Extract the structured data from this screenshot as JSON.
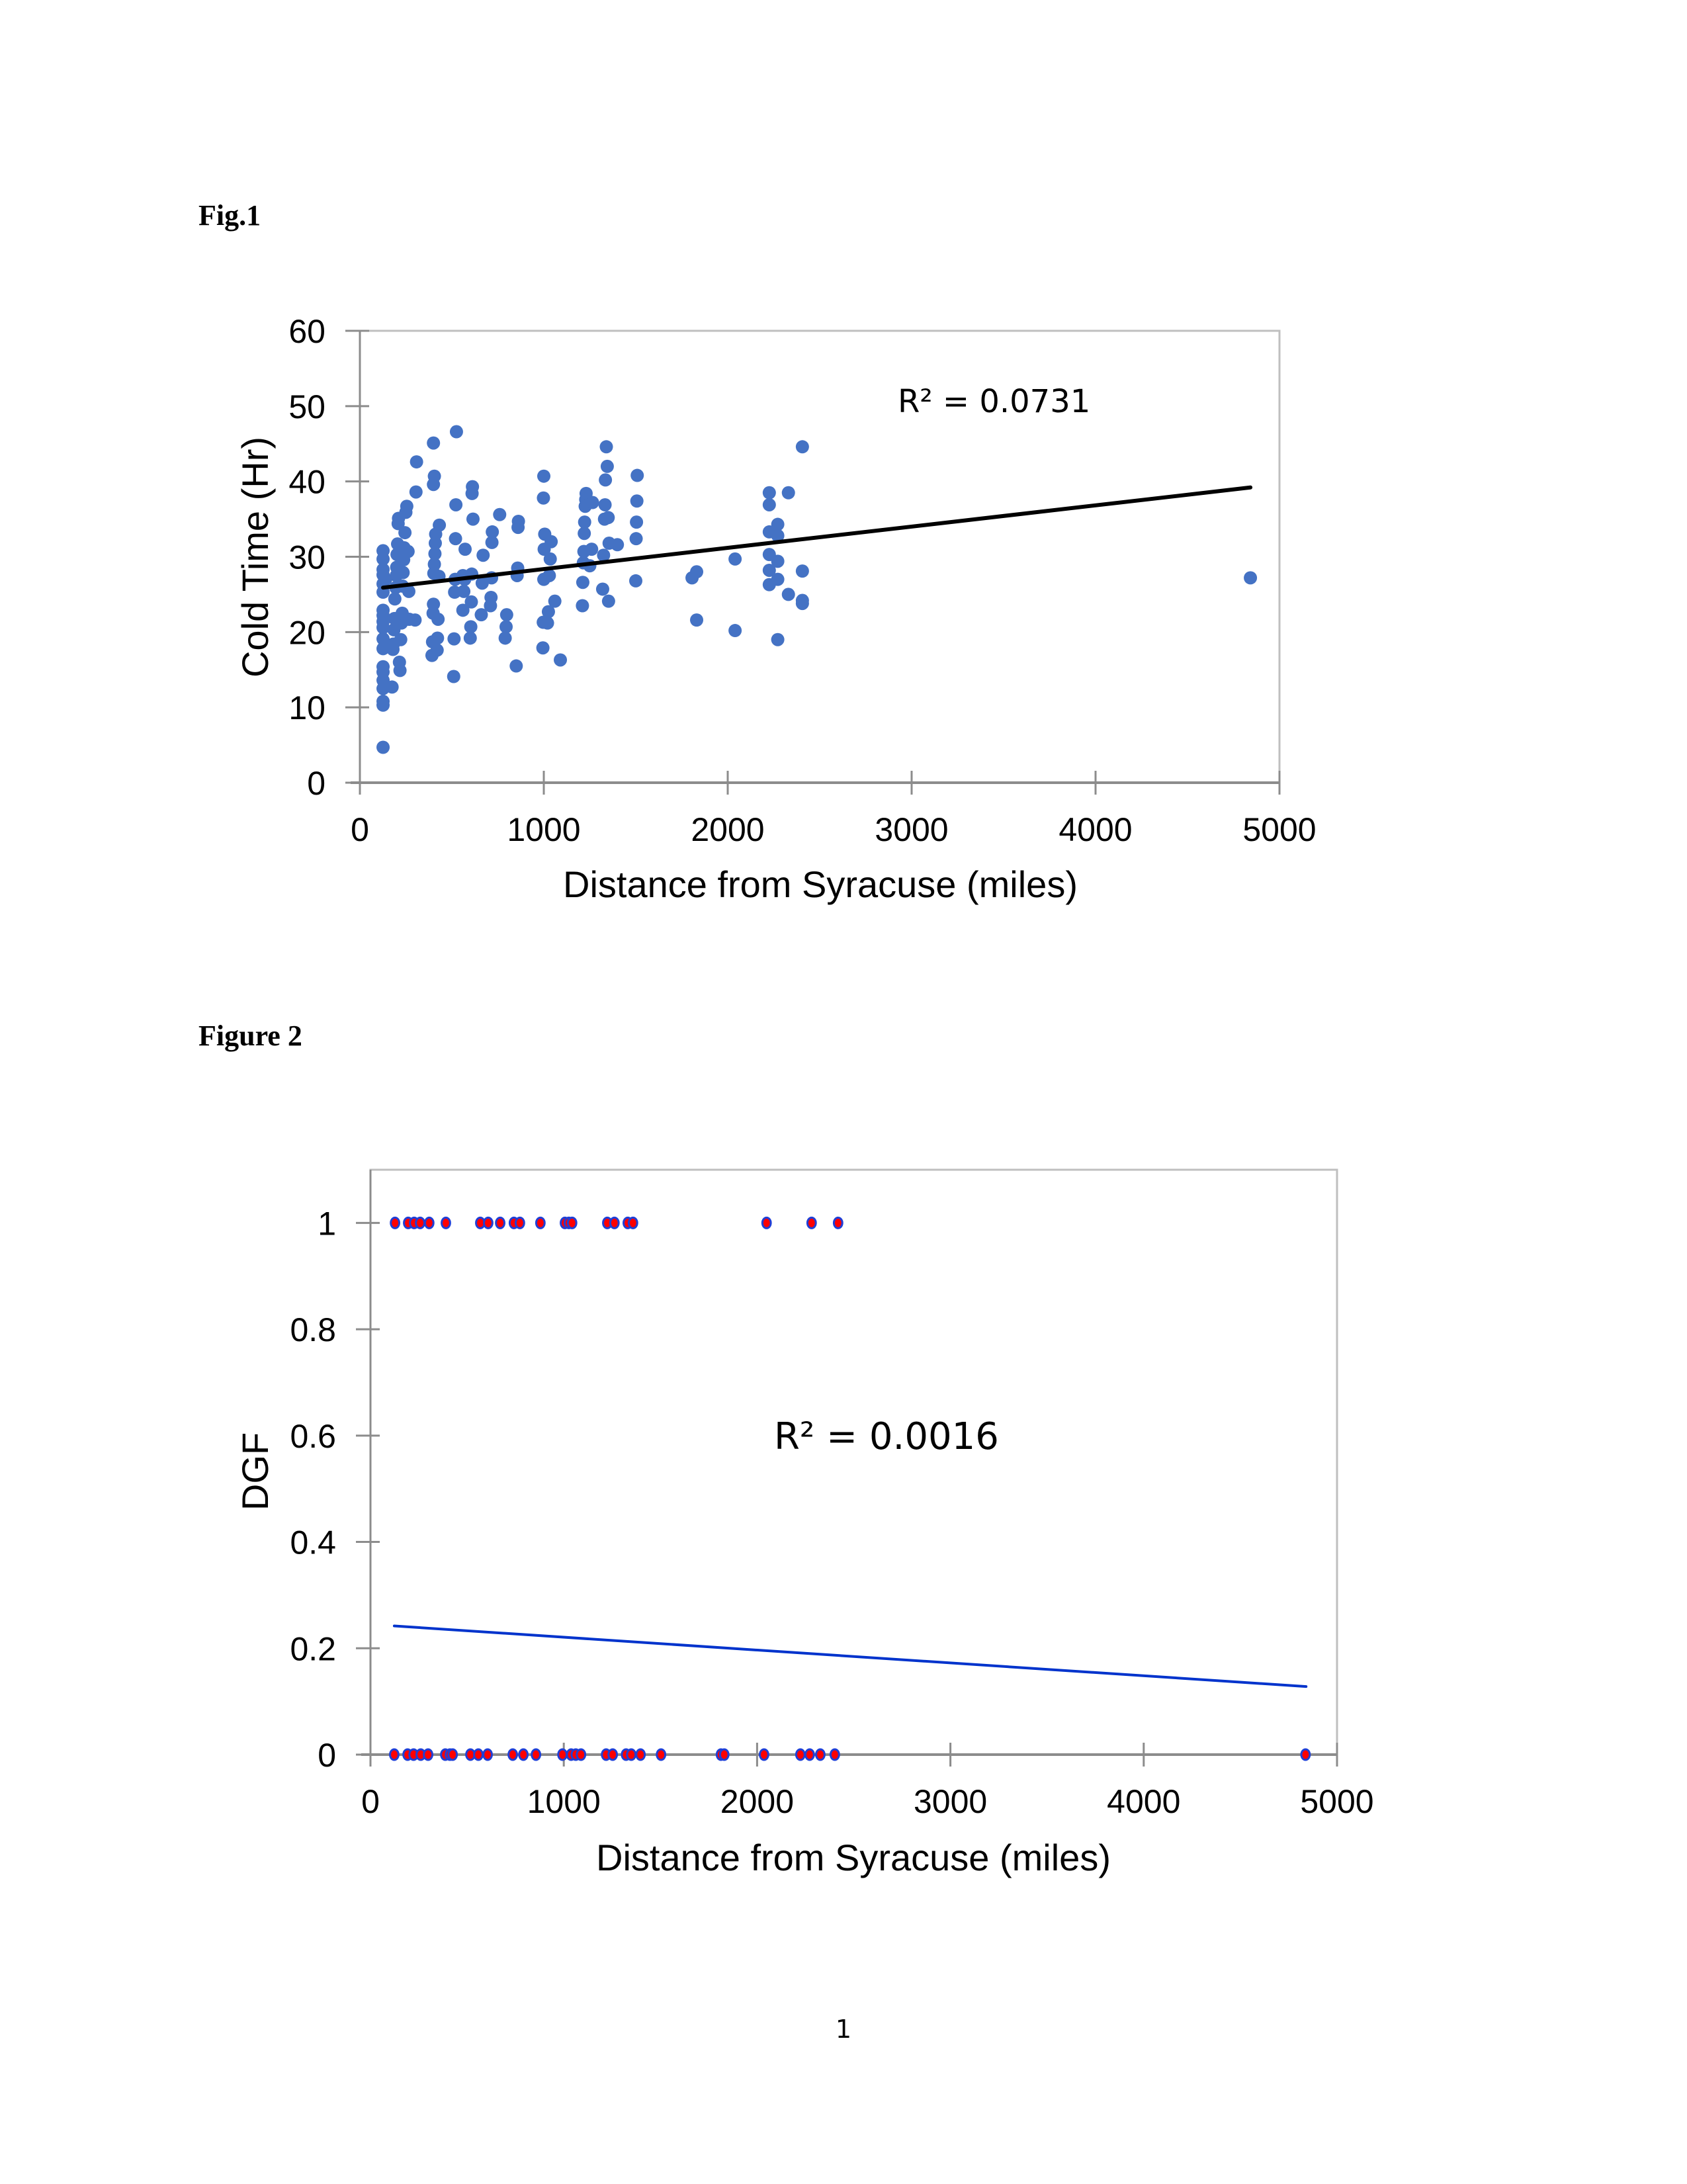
{
  "document": {
    "page_number": "1"
  },
  "figures": [
    {
      "caption": "Fig.1"
    },
    {
      "caption": "Figure 2"
    }
  ],
  "chart_data": [
    {
      "type": "scatter",
      "title": "",
      "xlabel": "Distance from Syracuse (miles)",
      "ylabel": "Cold Time (Hr)",
      "xlim": [
        0,
        5000
      ],
      "ylim": [
        0,
        60
      ],
      "xticks": [
        0,
        1000,
        2000,
        3000,
        4000,
        5000
      ],
      "yticks": [
        0,
        10,
        20,
        30,
        40,
        50,
        60
      ],
      "grid": false,
      "legend": "none",
      "marker_color": "#4472C4",
      "trendline": {
        "type": "linear",
        "color": "#000000",
        "x": [
          126,
          4842
        ],
        "y": [
          25.9,
          39.2
        ]
      },
      "annotation": "R² = 0.0731",
      "points": [
        [
          126,
          4.7
        ],
        [
          126,
          10.3
        ],
        [
          126,
          10.8
        ],
        [
          126,
          12.5
        ],
        [
          126,
          13.6
        ],
        [
          126,
          14.7
        ],
        [
          126,
          15.4
        ],
        [
          126,
          17.8
        ],
        [
          126,
          19.1
        ],
        [
          126,
          20.6
        ],
        [
          126,
          21.4
        ],
        [
          126,
          22.2
        ],
        [
          126,
          22.9
        ],
        [
          126,
          25.3
        ],
        [
          126,
          26.4
        ],
        [
          126,
          27.6
        ],
        [
          126,
          28.3
        ],
        [
          126,
          29.7
        ],
        [
          126,
          30.8
        ],
        [
          140,
          27.0
        ],
        [
          175,
          12.7
        ],
        [
          180,
          17.7
        ],
        [
          182,
          18.4
        ],
        [
          185,
          20.3
        ],
        [
          188,
          21.8
        ],
        [
          190,
          24.4
        ],
        [
          195,
          25.9
        ],
        [
          198,
          27.5
        ],
        [
          200,
          28.6
        ],
        [
          202,
          30.3
        ],
        [
          205,
          31.7
        ],
        [
          208,
          34.4
        ],
        [
          210,
          35.1
        ],
        [
          215,
          16.0
        ],
        [
          218,
          14.9
        ],
        [
          222,
          19.0
        ],
        [
          226,
          21.2
        ],
        [
          230,
          22.5
        ],
        [
          232,
          26.1
        ],
        [
          235,
          27.9
        ],
        [
          238,
          29.6
        ],
        [
          240,
          31.2
        ],
        [
          245,
          33.2
        ],
        [
          250,
          35.9
        ],
        [
          255,
          36.7
        ],
        [
          262,
          30.7
        ],
        [
          266,
          25.4
        ],
        [
          268,
          21.7
        ],
        [
          300,
          21.6
        ],
        [
          305,
          38.6
        ],
        [
          308,
          42.6
        ],
        [
          392,
          16.9
        ],
        [
          395,
          18.7
        ],
        [
          398,
          22.5
        ],
        [
          400,
          23.7
        ],
        [
          402,
          27.8
        ],
        [
          405,
          29.0
        ],
        [
          408,
          30.4
        ],
        [
          410,
          31.8
        ],
        [
          412,
          33.0
        ],
        [
          400,
          39.6
        ],
        [
          405,
          40.7
        ],
        [
          400,
          45.1
        ],
        [
          420,
          17.6
        ],
        [
          422,
          19.2
        ],
        [
          425,
          21.7
        ],
        [
          430,
          27.4
        ],
        [
          432,
          34.2
        ],
        [
          510,
          14.1
        ],
        [
          512,
          19.1
        ],
        [
          515,
          25.3
        ],
        [
          518,
          27.0
        ],
        [
          520,
          32.4
        ],
        [
          522,
          36.9
        ],
        [
          525,
          46.6
        ],
        [
          560,
          22.9
        ],
        [
          565,
          25.4
        ],
        [
          570,
          27.0
        ],
        [
          572,
          31.0
        ],
        [
          560,
          27.5
        ],
        [
          600,
          19.2
        ],
        [
          603,
          20.7
        ],
        [
          606,
          24.0
        ],
        [
          608,
          27.7
        ],
        [
          610,
          38.4
        ],
        [
          612,
          39.3
        ],
        [
          615,
          35.0
        ],
        [
          660,
          22.3
        ],
        [
          665,
          26.5
        ],
        [
          670,
          30.2
        ],
        [
          710,
          23.5
        ],
        [
          713,
          24.6
        ],
        [
          716,
          27.2
        ],
        [
          718,
          31.9
        ],
        [
          720,
          33.3
        ],
        [
          760,
          35.6
        ],
        [
          790,
          19.2
        ],
        [
          795,
          20.7
        ],
        [
          798,
          22.3
        ],
        [
          850,
          15.5
        ],
        [
          855,
          27.5
        ],
        [
          858,
          28.5
        ],
        [
          860,
          33.9
        ],
        [
          862,
          34.7
        ],
        [
          995,
          17.9
        ],
        [
          997,
          21.3
        ],
        [
          1000,
          27.0
        ],
        [
          1002,
          31.0
        ],
        [
          1005,
          33.0
        ],
        [
          998,
          37.8
        ],
        [
          1000,
          40.7
        ],
        [
          1020,
          21.2
        ],
        [
          1025,
          22.7
        ],
        [
          1030,
          27.5
        ],
        [
          1035,
          29.7
        ],
        [
          1040,
          32.0
        ],
        [
          1060,
          24.1
        ],
        [
          1090,
          16.3
        ],
        [
          1210,
          23.5
        ],
        [
          1212,
          26.6
        ],
        [
          1215,
          29.2
        ],
        [
          1218,
          30.7
        ],
        [
          1220,
          33.1
        ],
        [
          1222,
          34.6
        ],
        [
          1225,
          36.7
        ],
        [
          1228,
          37.6
        ],
        [
          1230,
          38.4
        ],
        [
          1250,
          28.8
        ],
        [
          1260,
          31.0
        ],
        [
          1265,
          37.2
        ],
        [
          1320,
          25.7
        ],
        [
          1325,
          30.2
        ],
        [
          1330,
          35.0
        ],
        [
          1333,
          36.9
        ],
        [
          1335,
          40.2
        ],
        [
          1340,
          44.6
        ],
        [
          1345,
          42.0
        ],
        [
          1350,
          35.2
        ],
        [
          1352,
          24.1
        ],
        [
          1355,
          31.8
        ],
        [
          1400,
          31.6
        ],
        [
          1500,
          26.8
        ],
        [
          1502,
          32.4
        ],
        [
          1504,
          34.6
        ],
        [
          1506,
          37.4
        ],
        [
          1508,
          40.8
        ],
        [
          1806,
          27.2
        ],
        [
          1831,
          28.0
        ],
        [
          1831,
          21.6
        ],
        [
          2040,
          29.7
        ],
        [
          2040,
          20.2
        ],
        [
          2226,
          38.5
        ],
        [
          2226,
          36.9
        ],
        [
          2226,
          33.3
        ],
        [
          2226,
          30.3
        ],
        [
          2226,
          28.2
        ],
        [
          2226,
          26.3
        ],
        [
          2272,
          34.3
        ],
        [
          2272,
          32.8
        ],
        [
          2272,
          29.4
        ],
        [
          2272,
          27.0
        ],
        [
          2272,
          19.0
        ],
        [
          2330,
          38.5
        ],
        [
          2330,
          25.0
        ],
        [
          2406,
          44.6
        ],
        [
          2406,
          28.1
        ],
        [
          2406,
          24.2
        ],
        [
          2406,
          23.8
        ],
        [
          4842,
          27.2
        ]
      ]
    },
    {
      "type": "scatter",
      "title": "",
      "xlabel": "Distance from Syracuse (miles)",
      "ylabel": "DGF",
      "xlim": [
        0,
        5000
      ],
      "ylim": [
        0,
        1.1
      ],
      "xticks": [
        0,
        1000,
        2000,
        3000,
        4000,
        5000
      ],
      "yticks": [
        0,
        0.2,
        0.4,
        0.6,
        0.8,
        1
      ],
      "ytick_labels": [
        "0",
        "0.2",
        "0.4",
        "0.6",
        "0.8",
        "1"
      ],
      "grid": false,
      "legend": "none",
      "marker_fill": "#FF0000",
      "marker_edge": "#1F3FD6",
      "trendline": {
        "type": "linear",
        "color": "#0033CC",
        "x": [
          123,
          4840
        ],
        "y": [
          0.242,
          0.128
        ]
      },
      "annotation": "R² = 0.0016",
      "points": [
        [
          127,
          1
        ],
        [
          195,
          1
        ],
        [
          226,
          1
        ],
        [
          257,
          1
        ],
        [
          304,
          1
        ],
        [
          390,
          1
        ],
        [
          568,
          1
        ],
        [
          609,
          1
        ],
        [
          671,
          1
        ],
        [
          742,
          1
        ],
        [
          773,
          1
        ],
        [
          879,
          1
        ],
        [
          1006,
          1
        ],
        [
          1026,
          1
        ],
        [
          1043,
          1
        ],
        [
          1225,
          1
        ],
        [
          1262,
          1
        ],
        [
          1331,
          1
        ],
        [
          1358,
          1
        ],
        [
          2049,
          1
        ],
        [
          2282,
          1
        ],
        [
          2419,
          1
        ],
        [
          123,
          0
        ],
        [
          192,
          0
        ],
        [
          223,
          0
        ],
        [
          260,
          0
        ],
        [
          298,
          0
        ],
        [
          387,
          0
        ],
        [
          411,
          0
        ],
        [
          425,
          0
        ],
        [
          517,
          0
        ],
        [
          558,
          0
        ],
        [
          606,
          0
        ],
        [
          736,
          0
        ],
        [
          791,
          0
        ],
        [
          856,
          0
        ],
        [
          993,
          0
        ],
        [
          1038,
          0
        ],
        [
          1062,
          0
        ],
        [
          1089,
          0
        ],
        [
          1219,
          0
        ],
        [
          1253,
          0
        ],
        [
          1322,
          0
        ],
        [
          1349,
          0
        ],
        [
          1397,
          0
        ],
        [
          1503,
          0
        ],
        [
          1813,
          0
        ],
        [
          1830,
          0
        ],
        [
          2036,
          0
        ],
        [
          2224,
          0
        ],
        [
          2272,
          0
        ],
        [
          2327,
          0
        ],
        [
          2402,
          0
        ],
        [
          4837,
          0
        ]
      ]
    }
  ]
}
